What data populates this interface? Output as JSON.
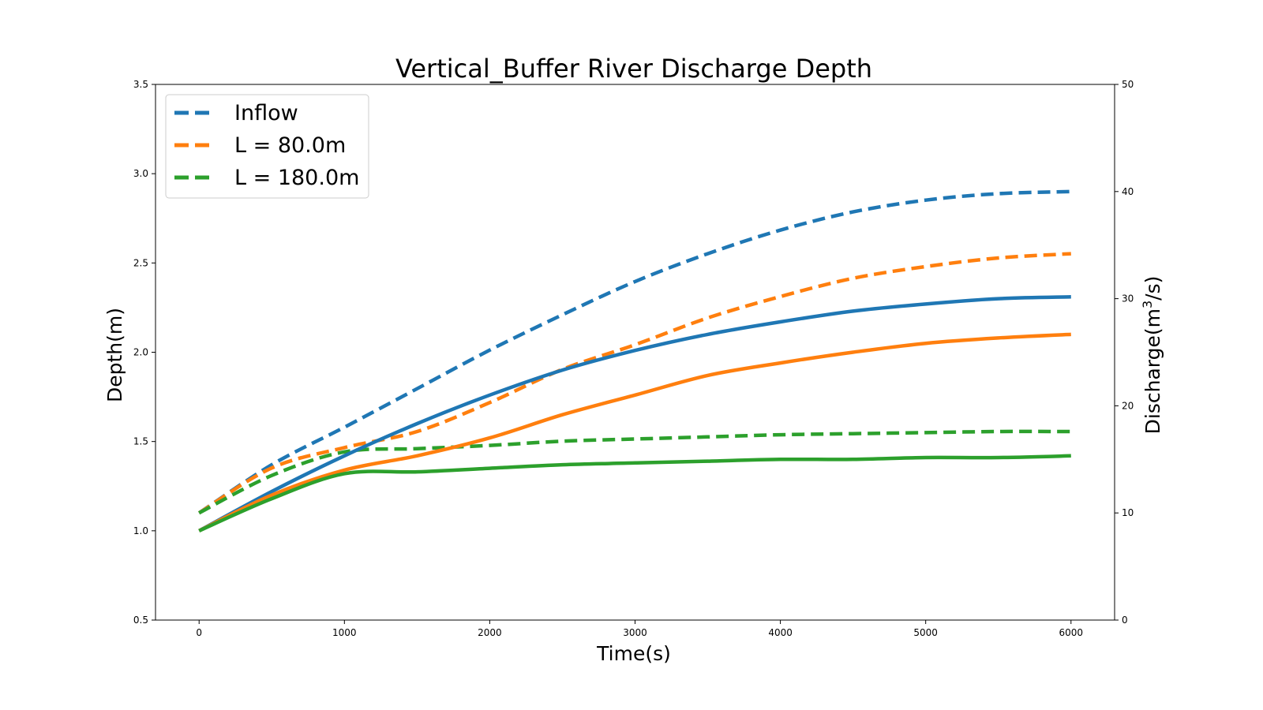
{
  "chart_data": {
    "type": "line",
    "title": "Vertical_Buffer River Discharge Depth",
    "xlabel": "Time(s)",
    "ylabel": "Depth(m)",
    "y2label_main": "Discharge(m",
    "y2label_sup": "3",
    "y2label_tail": "/s)",
    "xlim": [
      -300,
      6300
    ],
    "ylim": [
      0.5,
      3.5
    ],
    "y2lim": [
      0,
      50
    ],
    "xticks": [
      0,
      1000,
      2000,
      3000,
      4000,
      5000,
      6000
    ],
    "yticks": [
      "0.5",
      "1.0",
      "1.5",
      "2.0",
      "2.5",
      "3.0",
      "3.5"
    ],
    "y2ticks": [
      0,
      10,
      20,
      30,
      40,
      50
    ],
    "grid": false,
    "legend_position": "top-left",
    "legend": [
      {
        "label": "Inflow",
        "color": "#1f77b4"
      },
      {
        "label": "L = 80.0m",
        "color": "#ff7f0e"
      },
      {
        "label": "L = 180.0m",
        "color": "#2ca02c"
      }
    ],
    "x": [
      0,
      500,
      1000,
      1500,
      2000,
      2500,
      3000,
      3500,
      4000,
      4500,
      5000,
      5500,
      6000
    ],
    "series": [
      {
        "color": "#1f77b4",
        "style": "dashed",
        "axis": "discharge",
        "values": [
          10,
          14.5,
          18,
          21.6,
          25.2,
          28.5,
          31.6,
          34.2,
          36.4,
          38.1,
          39.2,
          39.8,
          40
        ]
      },
      {
        "color": "#ff7f0e",
        "style": "dashed",
        "axis": "discharge",
        "values": [
          10,
          14.2,
          16.1,
          17.6,
          20.3,
          23.4,
          25.7,
          28.2,
          30.2,
          31.9,
          33,
          33.8,
          34.2
        ]
      },
      {
        "color": "#2ca02c",
        "style": "dashed",
        "axis": "discharge",
        "values": [
          10,
          13.5,
          15.7,
          16,
          16.3,
          16.7,
          16.9,
          17.1,
          17.3,
          17.4,
          17.5,
          17.6,
          17.6
        ]
      },
      {
        "color": "#1f77b4",
        "style": "solid",
        "axis": "depth",
        "values": [
          1.0,
          1.22,
          1.42,
          1.6,
          1.76,
          1.9,
          2.01,
          2.1,
          2.17,
          2.23,
          2.27,
          2.3,
          2.31
        ]
      },
      {
        "color": "#ff7f0e",
        "style": "solid",
        "axis": "depth",
        "values": [
          1.0,
          1.2,
          1.34,
          1.42,
          1.52,
          1.65,
          1.76,
          1.87,
          1.94,
          2.0,
          2.05,
          2.08,
          2.1
        ]
      },
      {
        "color": "#2ca02c",
        "style": "solid",
        "axis": "depth",
        "values": [
          1.0,
          1.18,
          1.32,
          1.33,
          1.35,
          1.37,
          1.38,
          1.39,
          1.4,
          1.4,
          1.41,
          1.41,
          1.42
        ]
      }
    ]
  }
}
